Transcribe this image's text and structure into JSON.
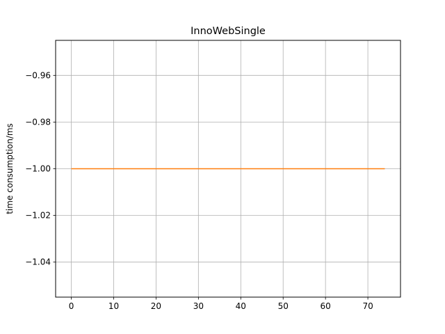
{
  "chart_data": {
    "type": "line",
    "title": "InnoWebSingle",
    "xlabel": "",
    "ylabel": "time consumption/ms",
    "xlim": [
      -3.7,
      77.7
    ],
    "ylim": [
      -1.055,
      -0.945
    ],
    "xticks": [
      0,
      10,
      20,
      30,
      40,
      50,
      60,
      70
    ],
    "xtick_labels": [
      "0",
      "10",
      "20",
      "30",
      "40",
      "50",
      "60",
      "70"
    ],
    "yticks": [
      -0.96,
      -0.98,
      -1.0,
      -1.02,
      -1.04
    ],
    "ytick_labels": [
      "−0.96",
      "−0.98",
      "−1.00",
      "−1.02",
      "−1.04"
    ],
    "grid": true,
    "series": [
      {
        "color": "#ff7f0e",
        "x": [
          0,
          74
        ],
        "y": [
          -1.0,
          -1.0
        ]
      }
    ]
  }
}
